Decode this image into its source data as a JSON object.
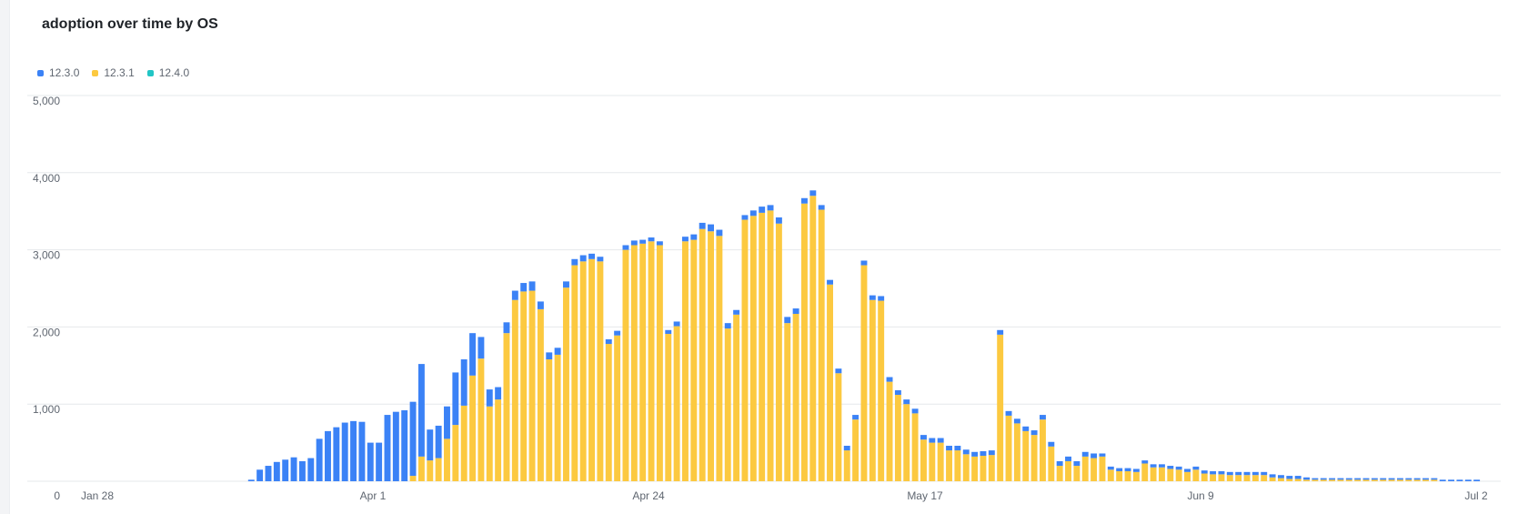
{
  "chart_data": {
    "type": "bar",
    "stacked": true,
    "title": "adoption over time by OS",
    "xlabel": "",
    "ylabel": "",
    "ylim": [
      0,
      5000
    ],
    "yticks": [
      "0",
      "1,000",
      "2,000",
      "3,000",
      "4,000",
      "5,000"
    ],
    "xticks": [
      "Jan 28",
      "Apr 1",
      "Apr 24",
      "May 17",
      "Jun 9",
      "Jul 2"
    ],
    "grid": true,
    "legend_position": "top-left",
    "series": [
      {
        "name": "12.3.0",
        "color": "#3b82f6",
        "values": [
          0,
          0,
          0,
          0,
          0,
          0,
          0,
          0,
          0,
          0,
          0,
          0,
          20,
          150,
          200,
          250,
          280,
          310,
          260,
          300,
          550,
          650,
          700,
          760,
          780,
          770,
          500,
          500,
          860,
          900,
          920,
          960,
          1200,
          400,
          420,
          420,
          680,
          600,
          550,
          280,
          220,
          160,
          140,
          120,
          110,
          120,
          100,
          90,
          90,
          80,
          80,
          80,
          70,
          60,
          60,
          60,
          60,
          60,
          50,
          50,
          50,
          50,
          60,
          60,
          70,
          80,
          90,
          80,
          70,
          60,
          60,
          70,
          80,
          70,
          80,
          80,
          70,
          70,
          70,
          60,
          60,
          60,
          60,
          60,
          60,
          60,
          60,
          60,
          60,
          60,
          60,
          60,
          60,
          60,
          60,
          60,
          60,
          60,
          60,
          60,
          60,
          60,
          60,
          60,
          60,
          60,
          60,
          60,
          60,
          60,
          60,
          60,
          40,
          40,
          40,
          40,
          40,
          40,
          40,
          40,
          40,
          40,
          40,
          40,
          40,
          40,
          40,
          40,
          40,
          40,
          40,
          40,
          40,
          40,
          40,
          40,
          30,
          20,
          20,
          20,
          20,
          20,
          20,
          20,
          20,
          20,
          20,
          20,
          20,
          20,
          20,
          20,
          20,
          20,
          20,
          20,
          20,
          0
        ]
      },
      {
        "name": "12.3.1",
        "color": "#fcc940",
        "values": [
          0,
          0,
          0,
          0,
          0,
          0,
          0,
          0,
          0,
          0,
          0,
          0,
          0,
          0,
          0,
          0,
          0,
          0,
          0,
          0,
          0,
          0,
          0,
          0,
          0,
          0,
          0,
          0,
          0,
          0,
          0,
          70,
          320,
          270,
          300,
          550,
          730,
          980,
          1370,
          1590,
          970,
          1060,
          1920,
          2350,
          2460,
          2470,
          2230,
          1580,
          1640,
          2510,
          2800,
          2850,
          2880,
          2850,
          1780,
          1890,
          3000,
          3060,
          3080,
          3110,
          3060,
          1910,
          2010,
          3110,
          3130,
          3270,
          3240,
          3180,
          1980,
          2160,
          3390,
          3440,
          3480,
          3510,
          3340,
          2050,
          2170,
          3600,
          3700,
          3520,
          2550,
          1400,
          400,
          800,
          2800,
          2350,
          2340,
          1290,
          1120,
          1000,
          880,
          540,
          500,
          500,
          400,
          400,
          350,
          320,
          330,
          340,
          1900,
          850,
          750,
          650,
          600,
          800,
          450,
          200,
          260,
          200,
          320,
          300,
          320,
          150,
          130,
          130,
          120,
          230,
          180,
          180,
          160,
          150,
          120,
          150,
          100,
          90,
          90,
          80,
          80,
          80,
          80,
          80,
          50,
          40,
          30,
          30,
          20,
          20,
          20,
          20,
          20,
          20,
          20,
          20,
          20,
          20,
          20,
          20,
          20,
          20,
          20,
          20,
          0
        ]
      },
      {
        "name": "12.4.0",
        "color": "#22c5c5",
        "values": [
          0,
          0,
          0,
          0,
          0,
          0,
          0,
          0,
          0,
          0,
          0,
          0,
          0,
          0,
          0,
          0,
          0,
          0,
          0,
          0,
          0,
          0,
          0,
          0,
          0,
          0,
          0,
          0,
          0,
          0,
          0,
          0,
          0,
          0,
          0,
          0,
          0,
          0,
          0,
          0,
          0,
          0,
          0,
          0,
          0,
          0,
          0,
          0,
          0,
          0,
          0,
          0,
          0,
          0,
          0,
          0,
          0,
          0,
          0,
          0,
          0,
          0,
          0,
          0,
          0,
          0,
          0,
          0,
          0,
          0,
          0,
          0,
          0,
          0,
          0,
          0,
          0,
          0,
          0,
          0,
          0,
          0,
          0,
          0,
          0,
          0,
          0,
          0,
          0,
          0,
          0,
          0,
          0,
          0,
          0,
          0,
          0,
          0,
          0,
          0,
          0,
          0,
          0,
          0,
          0,
          0,
          0,
          0,
          0,
          0,
          0,
          0,
          0,
          0,
          0,
          0,
          0,
          0,
          0,
          0,
          0,
          0,
          0,
          0,
          0,
          0,
          0,
          0,
          0,
          0,
          0,
          0,
          0,
          0,
          0,
          0,
          0,
          0,
          0,
          0,
          0,
          0,
          0,
          0,
          0,
          0,
          0,
          0,
          0,
          0,
          0,
          0,
          0,
          0
        ]
      }
    ]
  },
  "legend": [
    {
      "label": "12.3.0",
      "color": "#3b82f6"
    },
    {
      "label": "12.3.1",
      "color": "#fcc940"
    },
    {
      "label": "12.4.0",
      "color": "#22c5c5"
    }
  ]
}
